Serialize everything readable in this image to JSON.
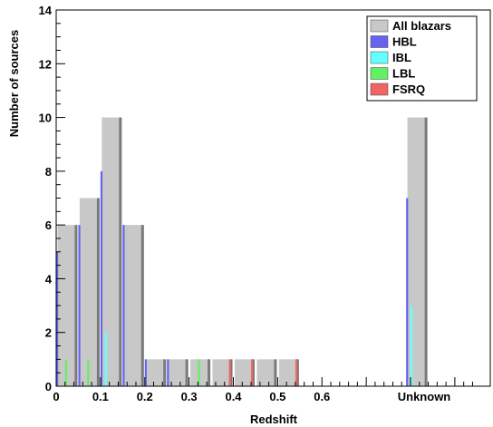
{
  "chart_data": {
    "type": "bar",
    "xlabel": "Redshift",
    "ylabel": "Number of sources",
    "ylim": [
      0,
      14
    ],
    "y_ticks": [
      "0",
      "2",
      "4",
      "6",
      "8",
      "10",
      "12",
      "14"
    ],
    "x_tick_labels": [
      "0",
      "0.1",
      "0.2",
      "0.3",
      "0.4",
      "0.5",
      "0.6",
      "Unknown"
    ],
    "x_tick_values": [
      0,
      0.1,
      0.2,
      0.3,
      0.4,
      0.5,
      0.6,
      "Unknown"
    ],
    "bin_width": 0.05,
    "xlim": [
      0,
      0.98
    ],
    "bins": [
      "0-0.05",
      "0.05-0.1",
      "0.1-0.15",
      "0.15-0.2",
      "0.2-0.25",
      "0.25-0.3",
      "0.3-0.35",
      "0.35-0.4",
      "0.4-0.45",
      "0.45-0.5",
      "0.5-0.55",
      "Unknown"
    ],
    "series": [
      {
        "name": "All blazars",
        "color": "#c8c8c8",
        "values": [
          6,
          7,
          10,
          6,
          1,
          1,
          1,
          1,
          1,
          1,
          1,
          10
        ]
      },
      {
        "name": "HBL",
        "color": "#6464f0",
        "values": [
          5,
          6,
          8,
          6,
          1,
          1,
          0,
          0,
          0,
          0,
          0,
          7
        ]
      },
      {
        "name": "IBL",
        "color": "#64ffff",
        "values": [
          0,
          0,
          2,
          0,
          0,
          0,
          0,
          0,
          0,
          0,
          0,
          3
        ]
      },
      {
        "name": "LBL",
        "color": "#64f064",
        "values": [
          1,
          1,
          0,
          0,
          0,
          0,
          1,
          0,
          0,
          0,
          0,
          0
        ]
      },
      {
        "name": "FSRQ",
        "color": "#f06464",
        "values": [
          0,
          0,
          0,
          0,
          0,
          0,
          0,
          1,
          1,
          0,
          1,
          0
        ]
      }
    ],
    "legend_position": "top-right",
    "grid": false
  }
}
